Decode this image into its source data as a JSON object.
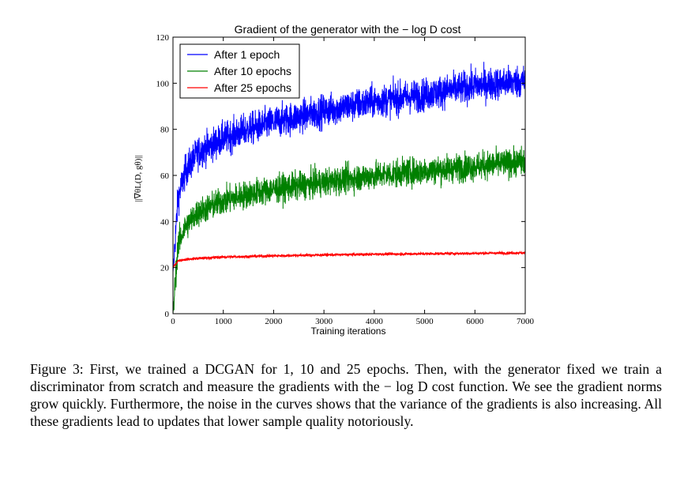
{
  "chart_data": {
    "type": "line",
    "title": "Gradient of the generator with the − log D cost",
    "xlabel": "Training iterations",
    "ylabel": "||∇θL(D, gθ)||",
    "xlim": [
      0,
      7000
    ],
    "ylim": [
      0,
      120
    ],
    "xticks": [
      0,
      1000,
      2000,
      3000,
      4000,
      5000,
      6000,
      7000
    ],
    "yticks": [
      0,
      20,
      40,
      60,
      80,
      100,
      120
    ],
    "grid": false,
    "legend_position": "top-left",
    "series": [
      {
        "name": "After 1 epoch",
        "color": "#0000ff",
        "x": [
          0,
          100,
          250,
          500,
          1000,
          1500,
          2000,
          3000,
          4000,
          5000,
          6000,
          7000
        ],
        "values": [
          18,
          50,
          62,
          70,
          76,
          80,
          83,
          88,
          92,
          95,
          99,
          101
        ],
        "noise": 3.5
      },
      {
        "name": "After 10 epochs",
        "color": "#008000",
        "x": [
          0,
          100,
          250,
          500,
          1000,
          1500,
          2000,
          3000,
          4000,
          5000,
          6000,
          7000
        ],
        "values": [
          0,
          30,
          38,
          44,
          49,
          52,
          54,
          57,
          60,
          62,
          64,
          66
        ],
        "noise": 3.0
      },
      {
        "name": "After 25 epochs",
        "color": "#ff0000",
        "x": [
          0,
          100,
          250,
          500,
          1000,
          2000,
          3000,
          4000,
          5000,
          6000,
          7000
        ],
        "values": [
          20,
          23,
          23.5,
          24,
          24.6,
          25.1,
          25.5,
          25.8,
          26.0,
          26.2,
          26.4
        ],
        "noise": 0.3
      }
    ]
  },
  "caption": "Figure 3: First, we trained a DCGAN for 1, 10 and 25 epochs. Then, with the generator fixed we train a discriminator from scratch and measure the gradients with the − log D cost function. We see the gradient norms grow quickly. Furthermore, the noise in the curves shows that the variance of the gradients is also increasing. All these gradients lead to updates that lower sample quality notoriously."
}
